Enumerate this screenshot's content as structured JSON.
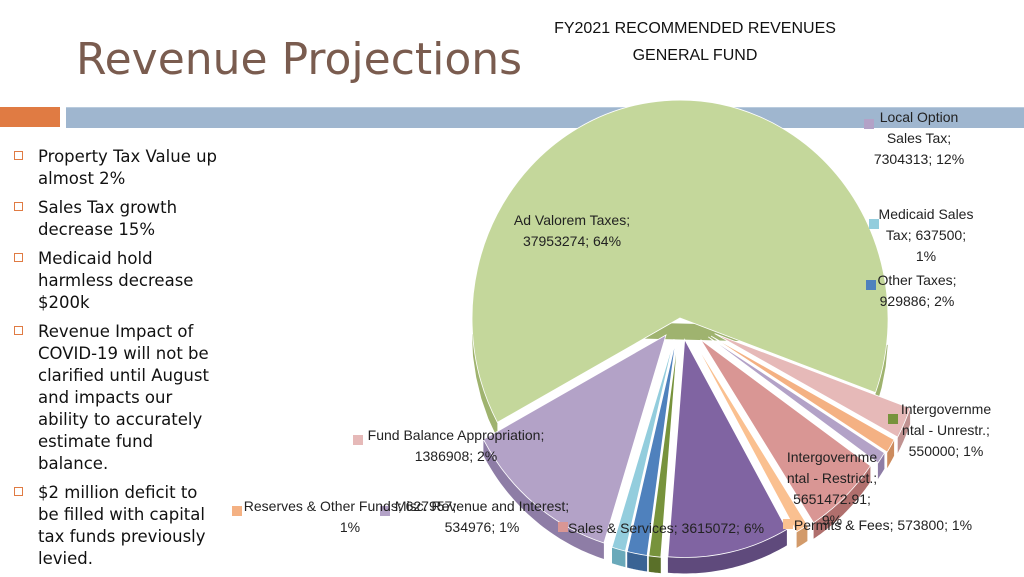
{
  "slide": {
    "title": "Revenue Projections",
    "bullets": [
      "Property Tax Value up almost 2%",
      "Sales Tax growth decrease 15%",
      "Medicaid hold harmless decrease $200k",
      "Revenue Impact of COVID-19 will not be clarified until August and impacts our ability to accurately estimate fund balance.",
      "$2 million deficit to be filled with capital tax funds previously levied."
    ],
    "accent_colors": {
      "title": "#7a5c4f",
      "orange_bar": "#e07b43",
      "blue_bar": "#9fb6cf"
    }
  },
  "chart_data": {
    "type": "pie",
    "title_lines": [
      "FY2021 RECOMMENDED REVENUES",
      "GENERAL FUND"
    ],
    "slices": [
      {
        "name": "Ad Valorem Taxes",
        "value": 37953274,
        "percent": "64%",
        "color": "#c4d79b",
        "side": "#9fb36f",
        "label_lines": [
          "Ad Valorem Taxes;",
          "37953274; 64%"
        ]
      },
      {
        "name": "Local Option Sales Tax",
        "value": 7304313,
        "percent": "12%",
        "color": "#b3a2c7",
        "side": "#8e7da6",
        "label_lines": [
          "Local Option",
          "Sales Tax;",
          "7304313; 12%"
        ]
      },
      {
        "name": "Medicaid Sales Tax",
        "value": 637500,
        "percent": "1%",
        "color": "#93cddd",
        "side": "#6aa9ba",
        "label_lines": [
          "Medicaid Sales",
          "Tax; 637500;",
          "1%"
        ]
      },
      {
        "name": "Other Taxes",
        "value": 929886,
        "percent": "2%",
        "color": "#4f81bd",
        "side": "#3a6394",
        "label_lines": [
          "Other Taxes;",
          "929886; 2%"
        ]
      },
      {
        "name": "Intergovernmental - Unrestr.",
        "value": 550000,
        "percent": "1%",
        "color": "#77933c",
        "side": "#5a7029",
        "label_lines": [
          "Intergovernme",
          "ntal - Unrestr.;",
          "550000; 1%"
        ]
      },
      {
        "name": "Intergovernmental - Restrict.",
        "value": 5651472.91,
        "percent": "9%",
        "color": "#8064a2",
        "side": "#5f4a7c",
        "label_lines": [
          "Intergovernme",
          "ntal - Restrict.;",
          "5651472.91;",
          "9%"
        ]
      },
      {
        "name": "Permits & Fees",
        "value": 573800,
        "percent": "1%",
        "color": "#fac090",
        "side": "#d29a6a",
        "label_lines": [
          "Permits & Fees; 573800; 1%"
        ]
      },
      {
        "name": "Sales & Services",
        "value": 3615072,
        "percent": "6%",
        "color": "#d99694",
        "side": "#b06f6d",
        "label_lines": [
          "Sales & Services; 3615072; 6%"
        ]
      },
      {
        "name": "Misc. Revenue and Interest",
        "value": 534976,
        "percent": "1%",
        "color": "#b3a2c7",
        "side": "#8e7da6",
        "label_lines": [
          "Misc. Revenue and Interest;",
          "534976; 1%"
        ]
      },
      {
        "name": "Reserves & Other Funds",
        "value": 627957,
        "percent": "1%",
        "color": "#f4b183",
        "side": "#cc8b5e",
        "label_lines": [
          "Reserves & Other Funds; 627957;",
          "1%"
        ]
      },
      {
        "name": "Fund Balance Appropriation",
        "value": 1386908,
        "percent": "2%",
        "color": "#e6b9b8",
        "side": "#c09291",
        "label_lines": [
          "Fund Balance Appropriation;",
          "1386908; 2%"
        ]
      }
    ]
  }
}
